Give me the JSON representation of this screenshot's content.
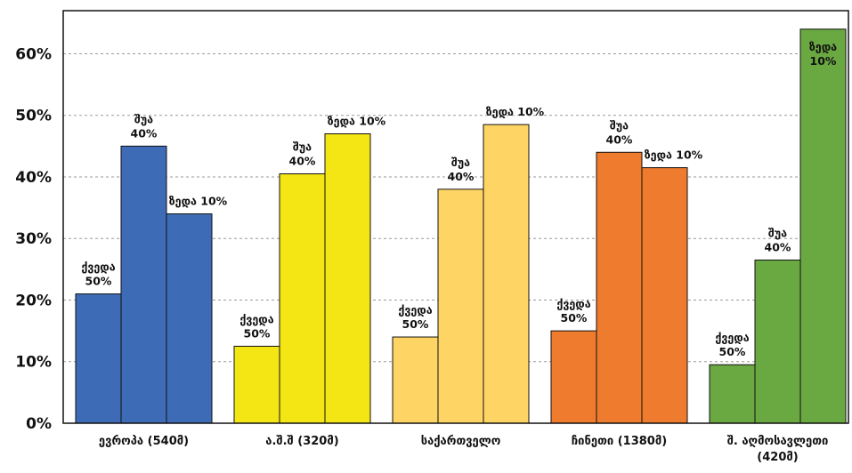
{
  "chart_data": {
    "type": "bar",
    "ylim": [
      0,
      67
    ],
    "yticks": [
      0,
      10,
      20,
      30,
      40,
      50,
      60
    ],
    "ytick_labels": [
      "0%",
      "10%",
      "20%",
      "30%",
      "40%",
      "50%",
      "60%"
    ],
    "grid": true,
    "groups": [
      {
        "category": "ევროპა (540მ)",
        "color": "#3d6bb5",
        "bars": [
          {
            "value": 21,
            "label": [
              "ქვედა",
              "50%"
            ]
          },
          {
            "value": 45,
            "label": [
              "შუა",
              "40%"
            ]
          },
          {
            "value": 34,
            "label": [
              "ზედა 10%"
            ]
          }
        ]
      },
      {
        "category": "ა.შ.შ (320მ)",
        "color": "#f4e614",
        "bars": [
          {
            "value": 12.5,
            "label": [
              "ქვედა",
              "50%"
            ]
          },
          {
            "value": 40.5,
            "label": [
              "შუა",
              "40%"
            ]
          },
          {
            "value": 47,
            "label": [
              "ზედა 10%"
            ]
          }
        ]
      },
      {
        "category": "საქართველო",
        "color": "#fed464",
        "bars": [
          {
            "value": 14,
            "label": [
              "ქვედა",
              "50%"
            ]
          },
          {
            "value": 38,
            "label": [
              "შუა",
              "40%"
            ]
          },
          {
            "value": 48.5,
            "label": [
              "ზედა 10%"
            ]
          }
        ]
      },
      {
        "category": "ჩინეთი (1380მ)",
        "color": "#ee7b2e",
        "bars": [
          {
            "value": 15,
            "label": [
              "ქვედა",
              "50%"
            ]
          },
          {
            "value": 44,
            "label": [
              "შუა",
              "40%"
            ]
          },
          {
            "value": 41.5,
            "label": [
              "ზედა 10%"
            ]
          }
        ]
      },
      {
        "category": [
          "შ. აღმოსავლეთი",
          "(420მ)"
        ],
        "color": "#6aa841",
        "bars": [
          {
            "value": 9.5,
            "label": [
              "ქვედა",
              "50%"
            ]
          },
          {
            "value": 26.5,
            "label": [
              "შუა",
              "40%"
            ]
          },
          {
            "value": 64,
            "label": [
              "ზედა",
              "10%"
            ]
          }
        ]
      }
    ]
  }
}
